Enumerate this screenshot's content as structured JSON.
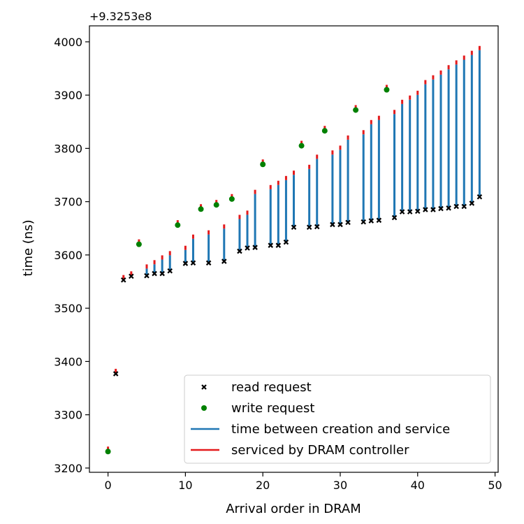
{
  "chart_data": {
    "type": "scatter",
    "offset_label": "+9.3253e8",
    "xlabel": "Arrival order in DRAM",
    "ylabel": "time (ns)",
    "xlim": [
      -2.4,
      50.4
    ],
    "ylim": [
      3192,
      4030
    ],
    "x_ticks": [
      0,
      10,
      20,
      30,
      40,
      50
    ],
    "y_ticks": [
      3200,
      3300,
      3400,
      3500,
      3600,
      3700,
      3800,
      3900,
      4000
    ],
    "grid": false,
    "legend_position": "lower right",
    "legend": [
      {
        "key": "read",
        "label": "read request",
        "marker": "x",
        "color": "#000000"
      },
      {
        "key": "write",
        "label": "write request",
        "marker": "circle",
        "color": "#008000"
      },
      {
        "key": "wait",
        "label": "time between creation and service",
        "marker": "line",
        "color": "#1f77b4"
      },
      {
        "key": "serviced",
        "label": "serviced by DRAM controller",
        "marker": "line",
        "color": "#e41a1c"
      }
    ],
    "requests": [
      {
        "x": 0,
        "type": "write",
        "created": 3231,
        "serviced": 3235
      },
      {
        "x": 1,
        "type": "read",
        "created": 3377,
        "serviced": 3381
      },
      {
        "x": 2,
        "type": "read",
        "created": 3553,
        "serviced": 3557
      },
      {
        "x": 3,
        "type": "read",
        "created": 3560,
        "serviced": 3564
      },
      {
        "x": 4,
        "type": "write",
        "created": 3620,
        "serviced": 3624
      },
      {
        "x": 5,
        "type": "read",
        "created": 3561,
        "serviced": 3577
      },
      {
        "x": 6,
        "type": "read",
        "created": 3565,
        "serviced": 3585
      },
      {
        "x": 7,
        "type": "read",
        "created": 3565,
        "serviced": 3594
      },
      {
        "x": 8,
        "type": "read",
        "created": 3570,
        "serviced": 3602
      },
      {
        "x": 9,
        "type": "write",
        "created": 3656,
        "serviced": 3660
      },
      {
        "x": 10,
        "type": "read",
        "created": 3584,
        "serviced": 3612
      },
      {
        "x": 11,
        "type": "read",
        "created": 3585,
        "serviced": 3633
      },
      {
        "x": 12,
        "type": "write",
        "created": 3686,
        "serviced": 3690
      },
      {
        "x": 13,
        "type": "read",
        "created": 3585,
        "serviced": 3641
      },
      {
        "x": 14,
        "type": "write",
        "created": 3694,
        "serviced": 3698
      },
      {
        "x": 15,
        "type": "read",
        "created": 3588,
        "serviced": 3652
      },
      {
        "x": 16,
        "type": "write",
        "created": 3705,
        "serviced": 3709
      },
      {
        "x": 17,
        "type": "read",
        "created": 3607,
        "serviced": 3670
      },
      {
        "x": 18,
        "type": "read",
        "created": 3613,
        "serviced": 3678
      },
      {
        "x": 19,
        "type": "read",
        "created": 3614,
        "serviced": 3717
      },
      {
        "x": 20,
        "type": "write",
        "created": 3770,
        "serviced": 3774
      },
      {
        "x": 21,
        "type": "read",
        "created": 3618,
        "serviced": 3726
      },
      {
        "x": 22,
        "type": "read",
        "created": 3618,
        "serviced": 3734
      },
      {
        "x": 23,
        "type": "read",
        "created": 3624,
        "serviced": 3743
      },
      {
        "x": 24,
        "type": "read",
        "created": 3652,
        "serviced": 3753
      },
      {
        "x": 25,
        "type": "write",
        "created": 3805,
        "serviced": 3809
      },
      {
        "x": 26,
        "type": "read",
        "created": 3652,
        "serviced": 3764
      },
      {
        "x": 27,
        "type": "read",
        "created": 3653,
        "serviced": 3783
      },
      {
        "x": 28,
        "type": "write",
        "created": 3833,
        "serviced": 3837
      },
      {
        "x": 29,
        "type": "read",
        "created": 3657,
        "serviced": 3791
      },
      {
        "x": 30,
        "type": "read",
        "created": 3657,
        "serviced": 3800
      },
      {
        "x": 31,
        "type": "read",
        "created": 3661,
        "serviced": 3819
      },
      {
        "x": 32,
        "type": "write",
        "created": 3872,
        "serviced": 3876
      },
      {
        "x": 33,
        "type": "read",
        "created": 3662,
        "serviced": 3829
      },
      {
        "x": 34,
        "type": "read",
        "created": 3664,
        "serviced": 3848
      },
      {
        "x": 35,
        "type": "read",
        "created": 3665,
        "serviced": 3856
      },
      {
        "x": 36,
        "type": "write",
        "created": 3910,
        "serviced": 3914
      },
      {
        "x": 37,
        "type": "read",
        "created": 3670,
        "serviced": 3867
      },
      {
        "x": 38,
        "type": "read",
        "created": 3681,
        "serviced": 3886
      },
      {
        "x": 39,
        "type": "read",
        "created": 3681,
        "serviced": 3894
      },
      {
        "x": 40,
        "type": "read",
        "created": 3682,
        "serviced": 3903
      },
      {
        "x": 41,
        "type": "read",
        "created": 3685,
        "serviced": 3923
      },
      {
        "x": 42,
        "type": "read",
        "created": 3685,
        "serviced": 3932
      },
      {
        "x": 43,
        "type": "read",
        "created": 3687,
        "serviced": 3941
      },
      {
        "x": 44,
        "type": "read",
        "created": 3688,
        "serviced": 3951
      },
      {
        "x": 45,
        "type": "read",
        "created": 3691,
        "serviced": 3960
      },
      {
        "x": 46,
        "type": "read",
        "created": 3691,
        "serviced": 3969
      },
      {
        "x": 47,
        "type": "read",
        "created": 3697,
        "serviced": 3978
      },
      {
        "x": 48,
        "type": "read",
        "created": 3709,
        "serviced": 3987
      }
    ]
  }
}
